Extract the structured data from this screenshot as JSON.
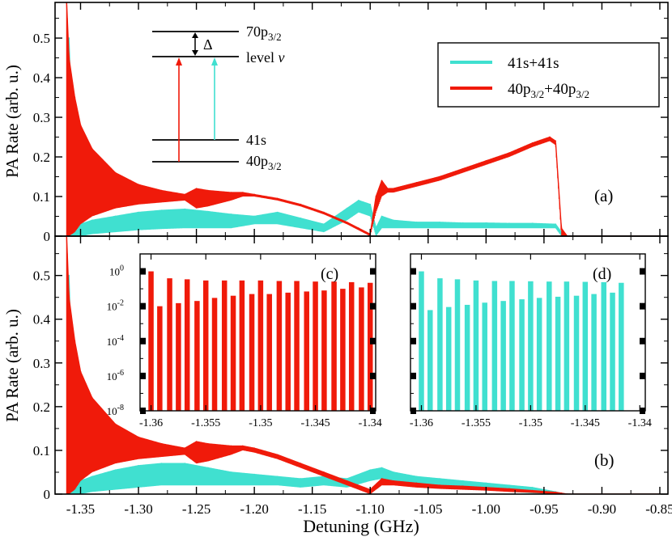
{
  "figure": {
    "x_label": "Detuning (GHz)",
    "x_ticks": [
      "-1.35",
      "-1.30",
      "-1.25",
      "-1.20",
      "-1.15",
      "-1.10",
      "-1.05",
      "-1.00",
      "-0.95",
      "-0.90",
      "-0.85"
    ],
    "colors": {
      "cyan": "#40e0d0",
      "red": "#f01a0a"
    }
  },
  "chart_data": [
    {
      "id": "a",
      "type": "line",
      "panel_label": "(a)",
      "ylabel": "PA Rate (arb. u.)",
      "xlabel": "Detuning (GHz)",
      "xlim": [
        -1.372,
        -0.843
      ],
      "ylim": [
        0,
        0.59
      ],
      "y_ticks": [
        "0",
        "0.1",
        "0.2",
        "0.3",
        "0.4",
        "0.5"
      ],
      "legend": {
        "position": "top-right",
        "items": [
          {
            "main": "41s+41s",
            "sub": "",
            "tail": "",
            "color": "#40e0d0"
          },
          {
            "main": "40p",
            "sub": "3/2",
            "tail": "+40p",
            "sub2": "3/2",
            "color": "#f01a0a"
          }
        ]
      },
      "level_diagram": {
        "levels": [
          {
            "main": "70p",
            "sub": "3/2",
            "tail": ""
          },
          {
            "main": "level ",
            "sub": "",
            "tail": "v"
          },
          {
            "main": "41s",
            "sub": "",
            "tail": ""
          },
          {
            "main": "40p",
            "sub": "3/2",
            "tail": ""
          }
        ],
        "delta_label": "Δ"
      },
      "series": [
        {
          "name": "41s+41s",
          "color": "#40e0d0",
          "x": [
            -1.36,
            -1.355,
            -1.35,
            -1.34,
            -1.32,
            -1.3,
            -1.28,
            -1.26,
            -1.24,
            -1.22,
            -1.2,
            -1.18,
            -1.16,
            -1.14,
            -1.12,
            -1.11,
            -1.1,
            -1.095,
            -1.09,
            -1.08,
            -1.06,
            -1.04,
            -1.02,
            -1.0,
            -0.98,
            -0.96,
            -0.94,
            -0.935,
            -0.93,
            -0.9,
            -0.85
          ],
          "y": [
            0.5,
            0.02,
            0.03,
            0.04,
            0.05,
            0.06,
            0.065,
            0.068,
            0.062,
            0.055,
            0.05,
            0.06,
            0.045,
            0.03,
            0.07,
            0.09,
            0.08,
            0.02,
            0.05,
            0.04,
            0.035,
            0.035,
            0.033,
            0.033,
            0.032,
            0.032,
            0.03,
            0.01,
            0.0,
            0.0,
            0.0
          ],
          "band_low": [
            0.0,
            0.0,
            0.0,
            0.005,
            0.01,
            0.015,
            0.018,
            0.02,
            0.02,
            0.02,
            0.03,
            0.03,
            0.02,
            0.01,
            0.04,
            0.06,
            0.05,
            0.0,
            0.02,
            0.02,
            0.02,
            0.02,
            0.02,
            0.02,
            0.02,
            0.02,
            0.02,
            0.0,
            0.0,
            0.0,
            0.0
          ]
        },
        {
          "name": "40p3/2+40p3/2",
          "color": "#f01a0a",
          "x": [
            -1.362,
            -1.36,
            -1.355,
            -1.35,
            -1.34,
            -1.32,
            -1.3,
            -1.28,
            -1.26,
            -1.25,
            -1.24,
            -1.22,
            -1.21,
            -1.2,
            -1.18,
            -1.16,
            -1.14,
            -1.12,
            -1.11,
            -1.1,
            -1.095,
            -1.09,
            -1.085,
            -1.08,
            -1.06,
            -1.04,
            -1.02,
            -1.0,
            -0.98,
            -0.96,
            -0.945,
            -0.94,
            -0.935,
            -0.93,
            -0.9,
            -0.85
          ],
          "y": [
            0.59,
            0.45,
            0.35,
            0.28,
            0.22,
            0.16,
            0.13,
            0.115,
            0.105,
            0.12,
            0.115,
            0.11,
            0.11,
            0.105,
            0.095,
            0.08,
            0.06,
            0.035,
            0.02,
            0.005,
            0.1,
            0.14,
            0.12,
            0.12,
            0.135,
            0.15,
            0.17,
            0.19,
            0.21,
            0.235,
            0.25,
            0.24,
            0.02,
            0.0,
            0.0,
            0.0
          ],
          "band_low": [
            0.0,
            0.0,
            0.01,
            0.03,
            0.05,
            0.07,
            0.08,
            0.085,
            0.09,
            0.07,
            0.075,
            0.09,
            0.1,
            0.1,
            0.09,
            0.075,
            0.055,
            0.03,
            0.015,
            0.0,
            0.06,
            0.1,
            0.11,
            0.11,
            0.125,
            0.14,
            0.16,
            0.18,
            0.2,
            0.225,
            0.24,
            0.23,
            0.0,
            0.0,
            0.0,
            0.0
          ]
        }
      ]
    },
    {
      "id": "b",
      "type": "line",
      "panel_label": "(b)",
      "ylabel": "PA Rate (arb. u.)",
      "xlabel": "Detuning (GHz)",
      "xlim": [
        -1.372,
        -0.843
      ],
      "ylim": [
        0,
        0.59
      ],
      "y_ticks": [
        "0",
        "0.1",
        "0.2",
        "0.3",
        "0.4",
        "0.5"
      ],
      "series": [
        {
          "name": "41s+41s",
          "color": "#40e0d0",
          "x": [
            -1.36,
            -1.355,
            -1.35,
            -1.34,
            -1.32,
            -1.3,
            -1.28,
            -1.26,
            -1.24,
            -1.22,
            -1.2,
            -1.18,
            -1.16,
            -1.14,
            -1.12,
            -1.1,
            -1.09,
            -1.08,
            -1.06,
            -1.04,
            -1.02,
            -1.0,
            -0.98,
            -0.96,
            -0.94,
            -0.935,
            -0.93,
            -0.85
          ],
          "y": [
            0.5,
            0.02,
            0.03,
            0.04,
            0.055,
            0.065,
            0.07,
            0.07,
            0.06,
            0.05,
            0.045,
            0.04,
            0.035,
            0.04,
            0.035,
            0.055,
            0.06,
            0.05,
            0.04,
            0.035,
            0.03,
            0.025,
            0.02,
            0.015,
            0.005,
            0.002,
            0.0,
            0.0
          ],
          "band_low": [
            0.0,
            0.0,
            0.0,
            0.005,
            0.01,
            0.015,
            0.02,
            0.02,
            0.02,
            0.02,
            0.02,
            0.02,
            0.015,
            0.02,
            0.015,
            0.03,
            0.035,
            0.03,
            0.025,
            0.02,
            0.015,
            0.01,
            0.005,
            0.002,
            0.0,
            0.0,
            0.0,
            0.0
          ]
        },
        {
          "name": "40p3/2+40p3/2",
          "color": "#f01a0a",
          "x": [
            -1.362,
            -1.36,
            -1.355,
            -1.35,
            -1.34,
            -1.32,
            -1.3,
            -1.28,
            -1.26,
            -1.25,
            -1.24,
            -1.22,
            -1.21,
            -1.2,
            -1.18,
            -1.16,
            -1.14,
            -1.12,
            -1.1,
            -1.09,
            -1.08,
            -1.06,
            -1.04,
            -1.02,
            -1.0,
            -0.98,
            -0.96,
            -0.94,
            -0.935,
            -0.93,
            -0.85
          ],
          "y": [
            0.59,
            0.45,
            0.35,
            0.28,
            0.22,
            0.16,
            0.13,
            0.115,
            0.105,
            0.12,
            0.115,
            0.11,
            0.11,
            0.105,
            0.09,
            0.07,
            0.05,
            0.03,
            0.01,
            0.035,
            0.03,
            0.025,
            0.02,
            0.018,
            0.015,
            0.012,
            0.008,
            0.004,
            0.002,
            0.0,
            0.0
          ],
          "band_low": [
            0.0,
            0.0,
            0.01,
            0.03,
            0.05,
            0.07,
            0.08,
            0.085,
            0.09,
            0.07,
            0.075,
            0.09,
            0.1,
            0.095,
            0.08,
            0.06,
            0.04,
            0.02,
            0.0,
            0.02,
            0.02,
            0.015,
            0.012,
            0.01,
            0.008,
            0.005,
            0.003,
            0.0,
            0.0,
            0.0,
            0.0
          ]
        }
      ]
    },
    {
      "id": "c",
      "type": "bar",
      "panel_label": "(c)",
      "color": "#f01a0a",
      "y_scale": "log",
      "xlim": [
        -1.361,
        -1.3395
      ],
      "ylim": [
        1e-08,
        10
      ],
      "x_ticks": [
        "-1.36",
        "-1.355",
        "-1.35",
        "-1.345",
        "-1.34"
      ],
      "y_ticks": [
        {
          "base": "10",
          "exp": "0"
        },
        {
          "base": "10",
          "exp": "-2"
        },
        {
          "base": "10",
          "exp": "-4"
        },
        {
          "base": "10",
          "exp": "-6"
        },
        {
          "base": "10",
          "exp": "-8"
        }
      ],
      "x": [
        -1.36,
        -1.3592,
        -1.3583,
        -1.3575,
        -1.3567,
        -1.3558,
        -1.355,
        -1.3542,
        -1.3533,
        -1.3525,
        -1.3517,
        -1.3508,
        -1.35,
        -1.3492,
        -1.3483,
        -1.3475,
        -1.3467,
        -1.3458,
        -1.345,
        -1.3442,
        -1.3433,
        -1.3425,
        -1.3417,
        -1.3408,
        -1.34
      ],
      "values": [
        1.0,
        0.01,
        0.4,
        0.015,
        0.35,
        0.02,
        0.3,
        0.03,
        0.3,
        0.04,
        0.3,
        0.05,
        0.3,
        0.05,
        0.28,
        0.06,
        0.28,
        0.07,
        0.26,
        0.08,
        0.26,
        0.1,
        0.24,
        0.12,
        0.22
      ]
    },
    {
      "id": "d",
      "type": "bar",
      "panel_label": "(d)",
      "color": "#40e0d0",
      "y_scale": "log",
      "xlim": [
        -1.361,
        -1.3395
      ],
      "ylim": [
        1e-08,
        10
      ],
      "x_ticks": [
        "-1.36",
        "-1.355",
        "-1.35",
        "-1.345",
        "-1.34"
      ],
      "y_ticks": [
        {
          "base": "10",
          "exp": "0"
        },
        {
          "base": "10",
          "exp": "-2"
        },
        {
          "base": "10",
          "exp": "-4"
        },
        {
          "base": "10",
          "exp": "-6"
        },
        {
          "base": "10",
          "exp": "-8"
        }
      ],
      "x": [
        -1.36,
        -1.3592,
        -1.3583,
        -1.3575,
        -1.3567,
        -1.3558,
        -1.355,
        -1.3542,
        -1.3533,
        -1.3525,
        -1.3517,
        -1.3508,
        -1.35,
        -1.3492,
        -1.3483,
        -1.3475,
        -1.3467,
        -1.3458,
        -1.345,
        -1.3442,
        -1.3433,
        -1.3425,
        -1.3417
      ],
      "values": [
        1.0,
        0.006,
        0.4,
        0.009,
        0.35,
        0.012,
        0.3,
        0.016,
        0.28,
        0.02,
        0.28,
        0.025,
        0.27,
        0.03,
        0.26,
        0.035,
        0.26,
        0.04,
        0.25,
        0.05,
        0.24,
        0.06,
        0.22
      ]
    }
  ]
}
